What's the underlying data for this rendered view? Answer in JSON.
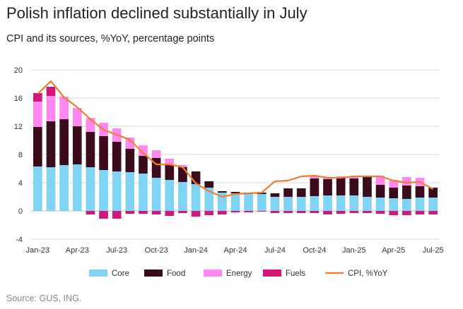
{
  "title": "Polish inflation declined substantially in July",
  "subtitle": "CPI and its sources, %YoY, percentage points",
  "source": "Source: GUS, ING.",
  "colors": {
    "core": "#7fd4f4",
    "food": "#3b0c1c",
    "energy": "#ff88f0",
    "fuels": "#d4157a",
    "cpi": "#f07c34",
    "grid": "#d9d9d9"
  },
  "chart_data": {
    "type": "bar",
    "stacked": true,
    "ylim": [
      -4,
      20
    ],
    "yticks": [
      -4,
      0,
      4,
      8,
      12,
      16,
      20
    ],
    "grid": true,
    "legend_position": "bottom",
    "x": [
      "Jan-23",
      "Feb-23",
      "Mar-23",
      "Apr-23",
      "May-23",
      "Jun-23",
      "Jul-23",
      "Aug-23",
      "Sep-23",
      "Oct-23",
      "Nov-23",
      "Dec-23",
      "Jan-24",
      "Feb-24",
      "Mar-24",
      "Apr-24",
      "May-24",
      "Jun-24",
      "Jul-24",
      "Aug-24",
      "Sep-24",
      "Oct-24",
      "Nov-24",
      "Dec-24",
      "Jan-25",
      "Feb-25",
      "Mar-25",
      "Apr-25",
      "May-25",
      "Jun-25",
      "Jul-25"
    ],
    "xtick_labels": [
      "Jan-23",
      "Apr-23",
      "Jul-23",
      "Oct-23",
      "Jan-24",
      "Apr-24",
      "Jul-24",
      "Oct-24",
      "Jan-25",
      "Apr-25",
      "Jul-25"
    ],
    "series": [
      {
        "name": "Core",
        "kind": "bar",
        "values": [
          6.3,
          6.2,
          6.5,
          6.6,
          6.2,
          5.8,
          5.6,
          5.5,
          5.3,
          4.7,
          4.4,
          4.1,
          3.8,
          3.3,
          2.6,
          2.5,
          2.4,
          2.4,
          2.0,
          2.0,
          2.0,
          2.1,
          2.2,
          2.2,
          2.2,
          2.0,
          1.9,
          1.8,
          1.7,
          1.9,
          1.9
        ]
      },
      {
        "name": "Food",
        "kind": "bar",
        "values": [
          5.6,
          6.5,
          6.5,
          5.4,
          5.0,
          4.8,
          4.2,
          3.3,
          2.5,
          2.8,
          2.2,
          2.1,
          1.8,
          0.9,
          0.2,
          0.2,
          0.2,
          0.2,
          0.5,
          1.2,
          1.2,
          2.5,
          2.3,
          2.6,
          2.4,
          2.8,
          1.8,
          1.5,
          1.9,
          1.6,
          1.4
        ]
      },
      {
        "name": "Energy",
        "kind": "bar",
        "values": [
          3.6,
          3.6,
          3.2,
          2.6,
          2.0,
          1.9,
          1.9,
          1.6,
          1.5,
          1.1,
          0.8,
          0.3,
          0.0,
          0.0,
          0.0,
          0.0,
          0.0,
          0.0,
          0.0,
          0.0,
          0.0,
          0.3,
          0.2,
          0.1,
          0.2,
          0.0,
          1.3,
          1.1,
          1.2,
          1.2,
          0.0
        ]
      },
      {
        "name": "Fuels",
        "kind": "bar",
        "values": [
          1.2,
          1.3,
          0.0,
          0.0,
          -0.5,
          -1.1,
          -1.1,
          -0.4,
          -0.4,
          -0.5,
          -0.7,
          -0.3,
          -0.8,
          -0.6,
          -0.5,
          -0.2,
          -0.2,
          -0.1,
          -0.3,
          -0.3,
          -0.3,
          -0.3,
          -0.5,
          -0.4,
          -0.3,
          -0.3,
          -0.4,
          -0.6,
          -0.6,
          -0.5,
          -0.5
        ]
      },
      {
        "name": "CPI, %YoY",
        "kind": "line",
        "values": [
          16.6,
          18.4,
          16.1,
          14.7,
          13.0,
          11.5,
          10.8,
          10.1,
          8.2,
          6.6,
          6.6,
          6.2,
          3.9,
          2.8,
          2.0,
          2.4,
          2.5,
          2.6,
          4.2,
          4.3,
          4.9,
          5.0,
          4.7,
          4.7,
          4.9,
          4.9,
          4.9,
          4.3,
          4.0,
          4.1,
          3.1
        ]
      }
    ]
  }
}
